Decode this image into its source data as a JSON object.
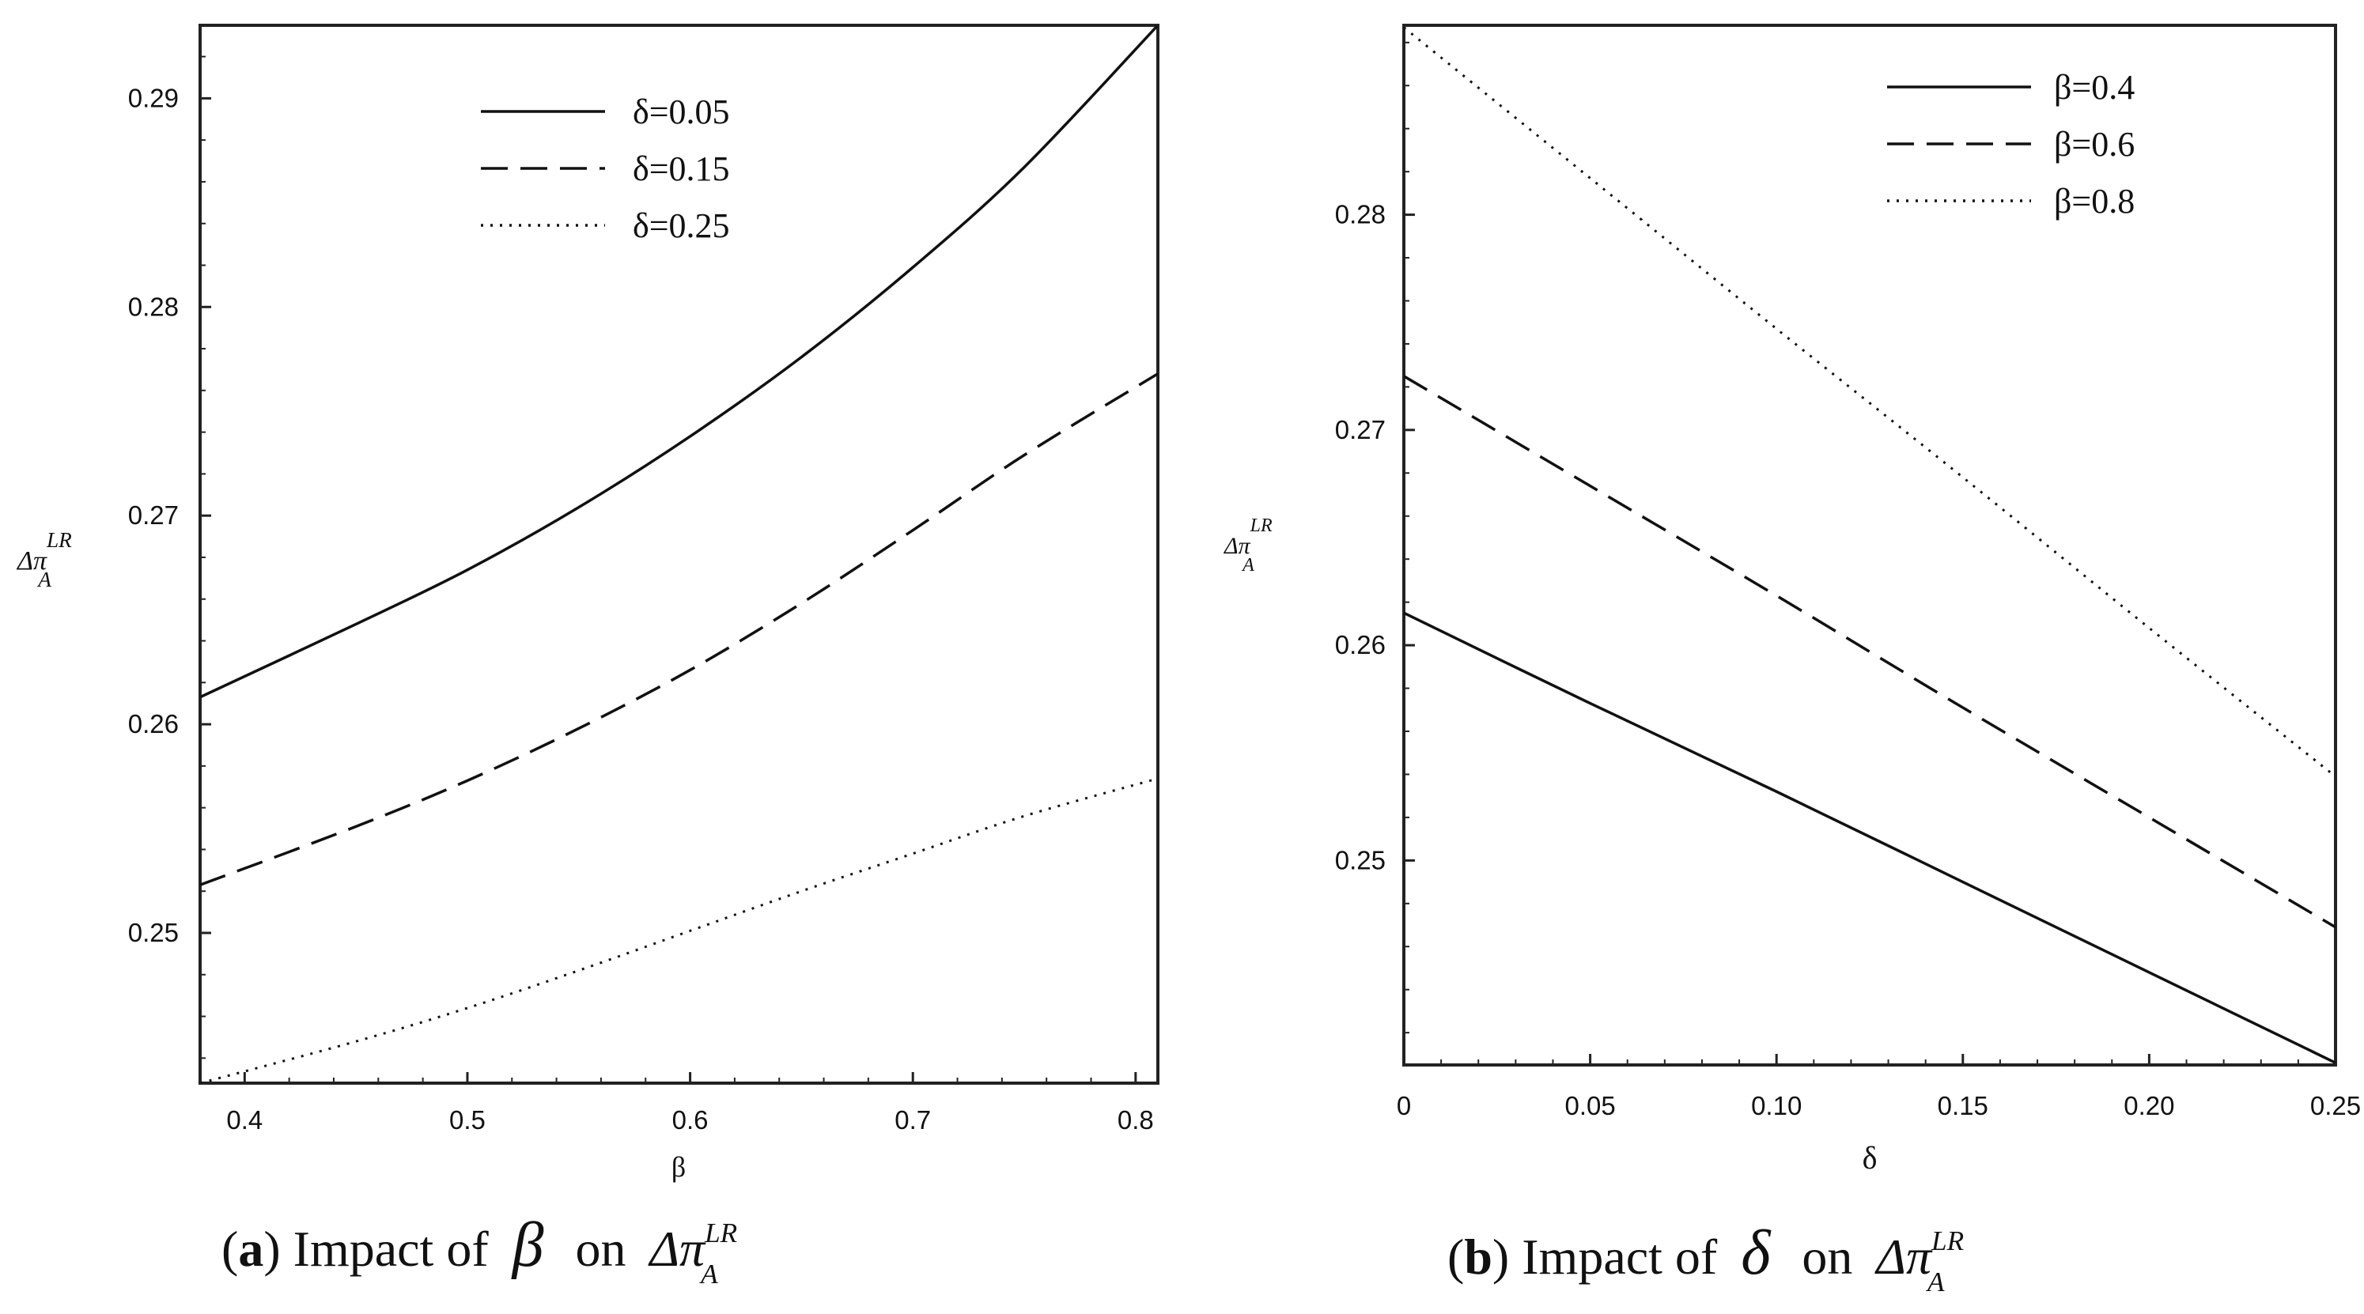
{
  "chart_data": [
    {
      "type": "line",
      "panel": "a",
      "caption_label": "a",
      "caption_text": "Impact of",
      "caption_symbol": "β",
      "caption_on": "on",
      "caption_ylabel_main": "Δπ",
      "caption_ylabel_sup": "LR",
      "caption_ylabel_sub": "A",
      "xlabel": "β",
      "ylabel_main": "Δπ",
      "ylabel_sup": "LR",
      "ylabel_sub": "A",
      "xlim": [
        0.38,
        0.81
      ],
      "ylim": [
        0.2428,
        0.2935
      ],
      "xticks": [
        0.4,
        0.5,
        0.6,
        0.7,
        0.8
      ],
      "xtick_labels": [
        "0.4",
        "0.5",
        "0.6",
        "0.7",
        "0.8"
      ],
      "yticks": [
        0.25,
        0.26,
        0.27,
        0.28,
        0.29
      ],
      "ytick_labels": [
        "0.25",
        "0.26",
        "0.27",
        "0.28",
        "0.29"
      ],
      "legend_position": "top-center",
      "series": [
        {
          "name": "δ=0.05",
          "style": "solid",
          "x": [
            0.38,
            0.45,
            0.5,
            0.55,
            0.6,
            0.65,
            0.7,
            0.75,
            0.81
          ],
          "y": [
            0.2613,
            0.2648,
            0.2674,
            0.2704,
            0.2738,
            0.2776,
            0.2819,
            0.2867,
            0.2935
          ]
        },
        {
          "name": "δ=0.15",
          "style": "dashed",
          "x": [
            0.38,
            0.45,
            0.5,
            0.55,
            0.6,
            0.65,
            0.7,
            0.75,
            0.81
          ],
          "y": [
            0.2523,
            0.2551,
            0.2573,
            0.2598,
            0.2626,
            0.2658,
            0.2693,
            0.2729,
            0.2768
          ]
        },
        {
          "name": "δ=0.25",
          "style": "dotted",
          "x": [
            0.38,
            0.45,
            0.5,
            0.55,
            0.6,
            0.65,
            0.7,
            0.75,
            0.81
          ],
          "y": [
            0.2428,
            0.2448,
            0.2464,
            0.2482,
            0.2501,
            0.252,
            0.2538,
            0.2556,
            0.2574
          ]
        }
      ]
    },
    {
      "type": "line",
      "panel": "b",
      "caption_label": "b",
      "caption_text": "Impact of",
      "caption_symbol": "δ",
      "caption_on": "on",
      "caption_ylabel_main": "Δπ",
      "caption_ylabel_sup": "LR",
      "caption_ylabel_sub": "A",
      "xlabel": "δ",
      "ylabel_main": "Δπ",
      "ylabel_sup": "LR",
      "ylabel_sub": "A",
      "xlim": [
        0,
        0.25
      ],
      "ylim": [
        0.2405,
        0.2888
      ],
      "xticks": [
        0,
        0.05,
        0.1,
        0.15,
        0.2,
        0.25
      ],
      "xtick_labels": [
        "0",
        "0.05",
        "0.10",
        "0.15",
        "0.20",
        "0.25"
      ],
      "yticks": [
        0.25,
        0.26,
        0.27,
        0.28
      ],
      "ytick_labels": [
        "0.25",
        "0.26",
        "0.27",
        "0.28"
      ],
      "legend_position": "top-right",
      "series": [
        {
          "name": "β=0.4",
          "style": "solid",
          "x": [
            0,
            0.05,
            0.1,
            0.15,
            0.2,
            0.25
          ],
          "y": [
            0.2615,
            0.2573,
            0.2532,
            0.249,
            0.2448,
            0.2406
          ]
        },
        {
          "name": "β=0.6",
          "style": "dashed",
          "x": [
            0,
            0.05,
            0.1,
            0.15,
            0.2,
            0.25
          ],
          "y": [
            0.2725,
            0.2674,
            0.2623,
            0.2571,
            0.252,
            0.2469
          ]
        },
        {
          "name": "β=0.8",
          "style": "dotted",
          "x": [
            0,
            0.05,
            0.1,
            0.15,
            0.2,
            0.25
          ],
          "y": [
            0.2887,
            0.2817,
            0.2747,
            0.2678,
            0.2608,
            0.2539
          ]
        }
      ]
    }
  ]
}
